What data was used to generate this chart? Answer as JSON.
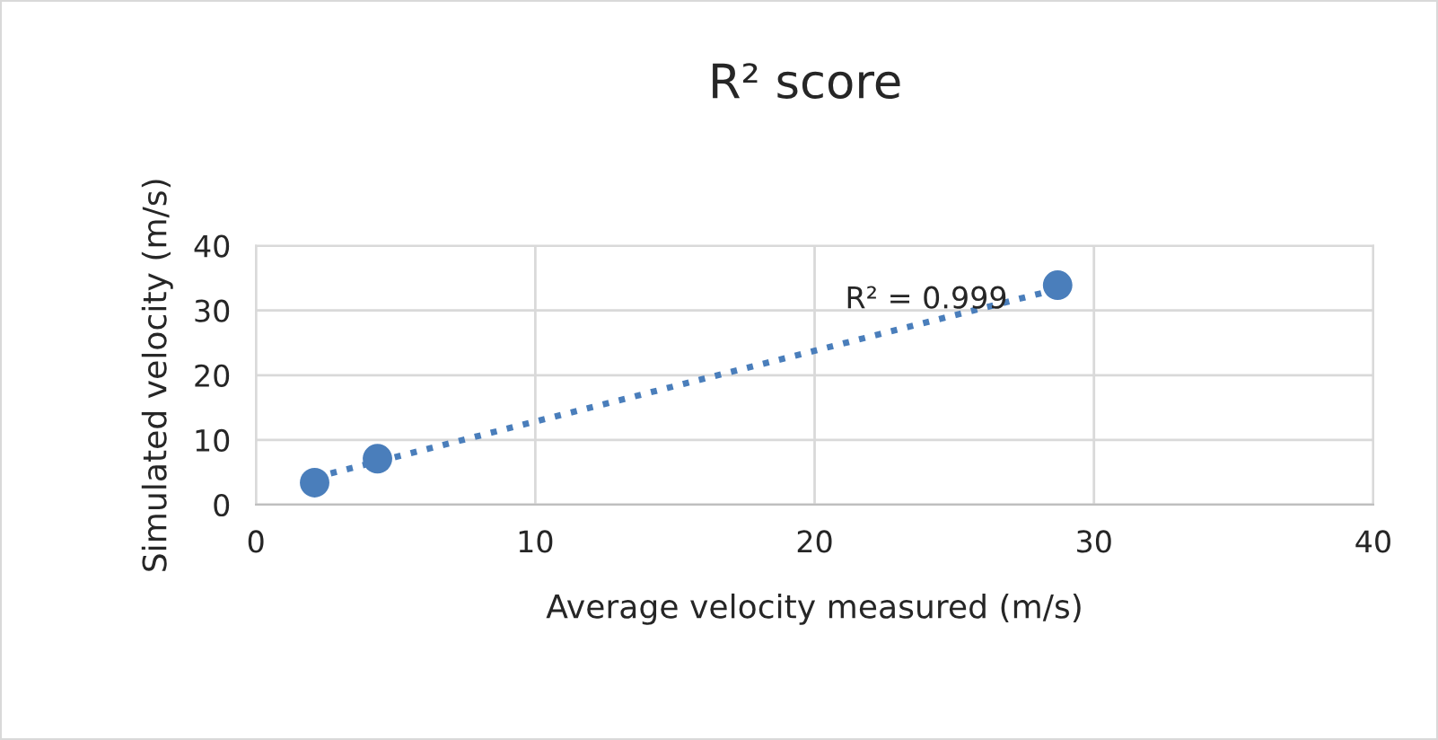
{
  "chart_data": {
    "type": "scatter",
    "title": "R² score",
    "xlabel": "Average velocity measured (m/s)",
    "ylabel": "Simulated velocity (m/s)",
    "x": [
      2.1,
      4.35,
      28.7
    ],
    "series": [
      {
        "color": "#4a7ebb",
        "values": [
          3.4,
          7.1,
          33.9
        ],
        "marker": "circle"
      },
      {
        "type": "line",
        "color": "#4a7ebb",
        "x": [
          2.1,
          28.7
        ],
        "values": [
          4.2,
          33.3
        ],
        "line_style": "dotted"
      }
    ],
    "annotations": [
      "R² = 0.999"
    ],
    "xlim": [
      0,
      40
    ],
    "ylim": [
      0,
      40
    ],
    "xticks": [
      0,
      10,
      20,
      30,
      40
    ],
    "yticks": [
      0,
      10,
      20,
      30,
      40
    ],
    "grid": true,
    "legend": false
  }
}
